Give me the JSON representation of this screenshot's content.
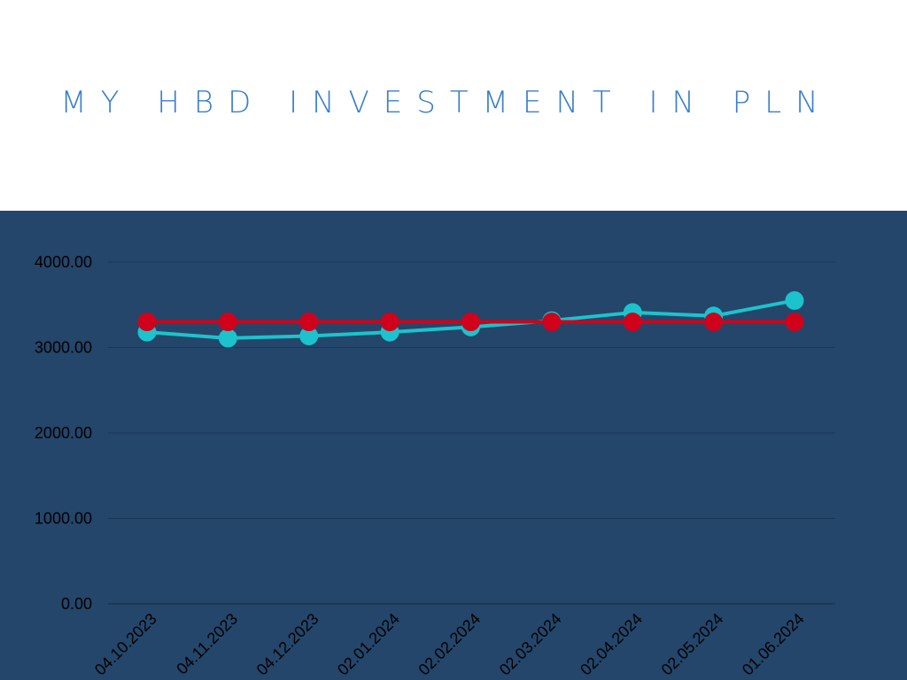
{
  "title": "MY HBD INVESTMENT IN PLN",
  "colors": {
    "panel_background": "#24466b",
    "title": "#3a7fc8",
    "series_current_value": "#1cc3cc",
    "series_invested": "#d0021b"
  },
  "chart_data": {
    "type": "line",
    "title": "MY HBD INVESTMENT IN PLN",
    "xlabel": "",
    "ylabel": "",
    "ylim": [
      0,
      4000
    ],
    "yticks": [
      "0.00",
      "1000.00",
      "2000.00",
      "3000.00",
      "4000.00"
    ],
    "grid": true,
    "categories": [
      "04.10.2023",
      "04.11.2023",
      "04.12.2023",
      "02.01.2024",
      "02.02.2024",
      "02.03.2024",
      "02.04.2024",
      "02.05.2024",
      "01.06.2024"
    ],
    "series": [
      {
        "values": [
          3180,
          3110,
          3135,
          3180,
          3240,
          3315,
          3410,
          3370,
          3550
        ],
        "color": "#1cc3cc"
      },
      {
        "values": [
          3300,
          3300,
          3300,
          3300,
          3300,
          3300,
          3300,
          3300,
          3300
        ],
        "color": "#d0021b"
      }
    ]
  }
}
